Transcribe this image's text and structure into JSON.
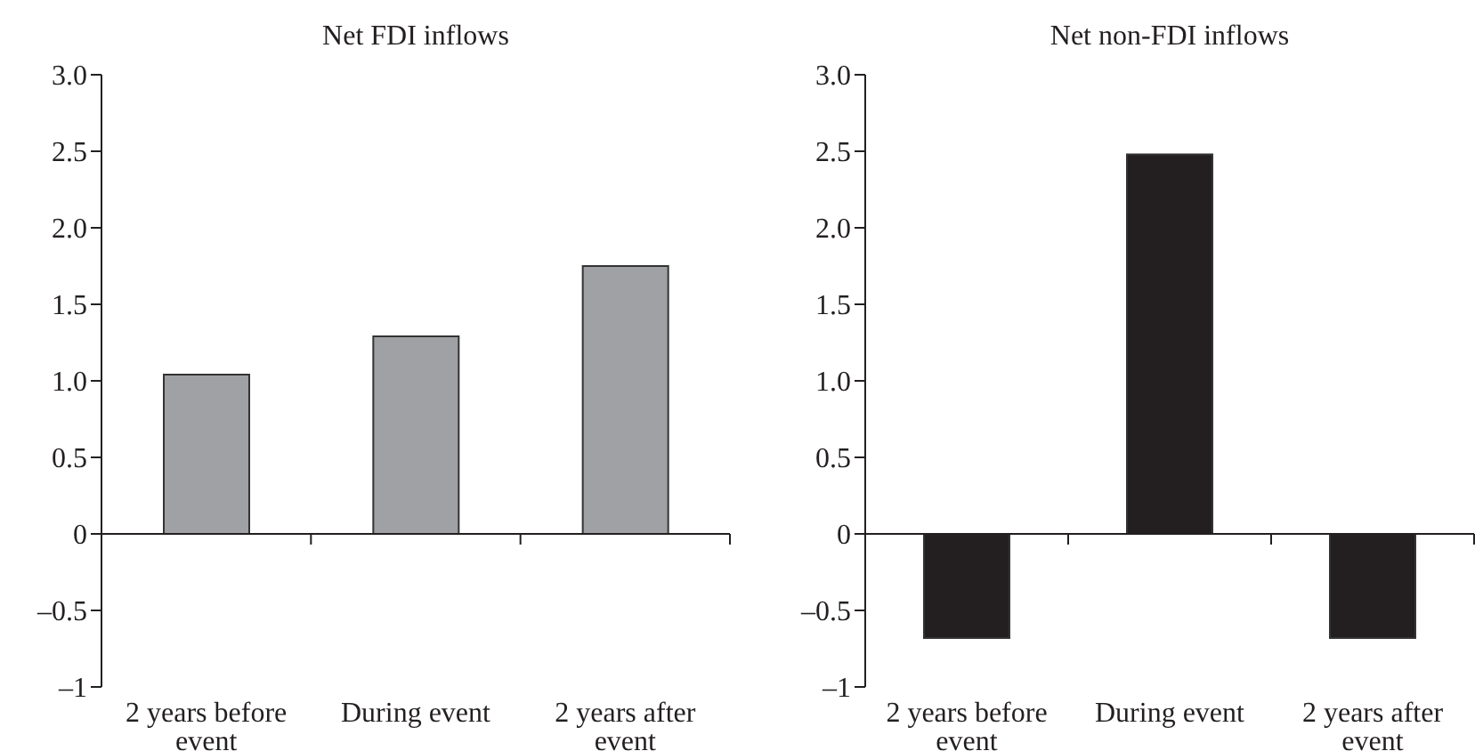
{
  "chart_data": [
    {
      "type": "bar",
      "title": "Net FDI inflows",
      "categories": [
        "2 years before event",
        "During event",
        "2 years after event"
      ],
      "values": [
        1.04,
        1.29,
        1.75
      ],
      "color": "#a0a1a5",
      "ylim": [
        -1,
        3
      ],
      "yticks": [
        {
          "value": -1,
          "label": "–1"
        },
        {
          "value": -0.5,
          "label": "–0.5"
        },
        0,
        0.5,
        {
          "value": 1,
          "label": "1.0"
        },
        1.5,
        {
          "value": 2,
          "label": "2.0"
        },
        2.5,
        {
          "value": 3,
          "label": "3.0"
        }
      ]
    },
    {
      "type": "bar",
      "title": "Net non-FDI inflows",
      "categories": [
        "2 years before event",
        "During event",
        "2 years after event"
      ],
      "values": [
        -0.68,
        2.48,
        -0.68
      ],
      "color": "#231f20",
      "ylim": [
        -1,
        3
      ],
      "yticks": [
        {
          "value": -1,
          "label": "–1"
        },
        {
          "value": -0.5,
          "label": "–0.5"
        },
        0,
        0.5,
        {
          "value": 1,
          "label": "1.0"
        },
        1.5,
        {
          "value": 2,
          "label": "2.0"
        },
        2.5,
        {
          "value": 3,
          "label": "3.0"
        }
      ]
    }
  ]
}
